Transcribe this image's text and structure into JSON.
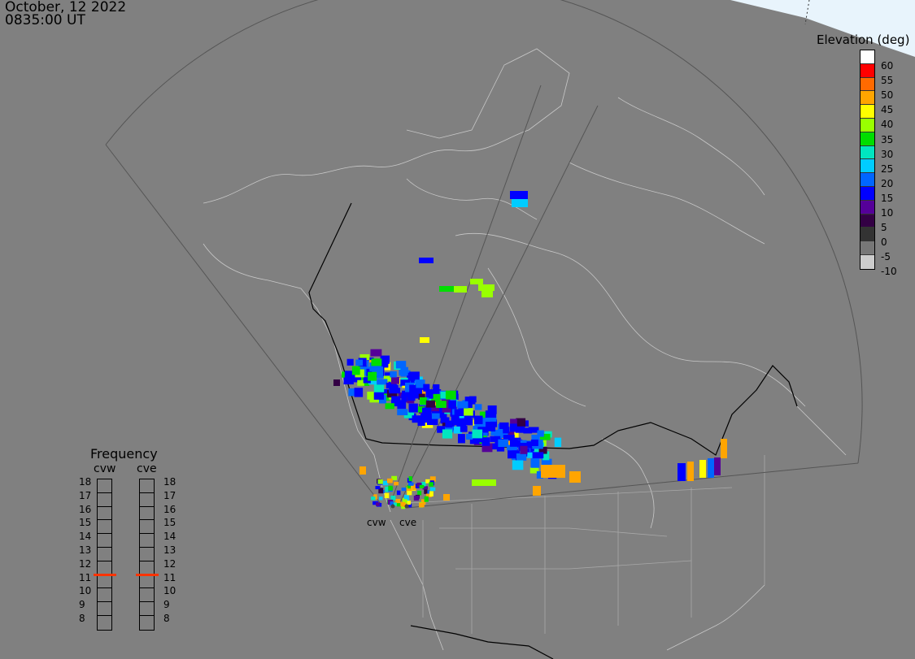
{
  "header": {
    "date": "October, 12 2022",
    "time": "0835:00 UT"
  },
  "legend": {
    "title": "Elevation (deg)",
    "entries": [
      {
        "label": "60",
        "color": "#ffffff"
      },
      {
        "label": "55",
        "color": "#ff0000"
      },
      {
        "label": "50",
        "color": "#ff6a00"
      },
      {
        "label": "45",
        "color": "#ffa500"
      },
      {
        "label": "40",
        "color": "#ffff00"
      },
      {
        "label": "35",
        "color": "#99ff00"
      },
      {
        "label": "30",
        "color": "#00dd00"
      },
      {
        "label": "25",
        "color": "#00e5c0"
      },
      {
        "label": "20",
        "color": "#00ccff"
      },
      {
        "label": "15",
        "color": "#0066ff"
      },
      {
        "label": "10",
        "color": "#0000ff"
      },
      {
        "label": "5",
        "color": "#550099"
      },
      {
        "label": "0",
        "color": "#330044"
      },
      {
        "label": "-5",
        "color": "#333333"
      },
      {
        "label": "-10",
        "color": "#777777"
      },
      {
        "label": "",
        "color": "#cccccc"
      }
    ]
  },
  "frequency": {
    "title": "Frequency",
    "receivers": [
      {
        "name": "cvw",
        "freq": 11
      },
      {
        "name": "cve",
        "freq": 11
      }
    ],
    "scale": [
      "18",
      "17",
      "16",
      "15",
      "14",
      "13",
      "12",
      "11",
      "10",
      "9",
      "8"
    ]
  },
  "sites": [
    {
      "name": "cvw"
    },
    {
      "name": "cve"
    }
  ]
}
